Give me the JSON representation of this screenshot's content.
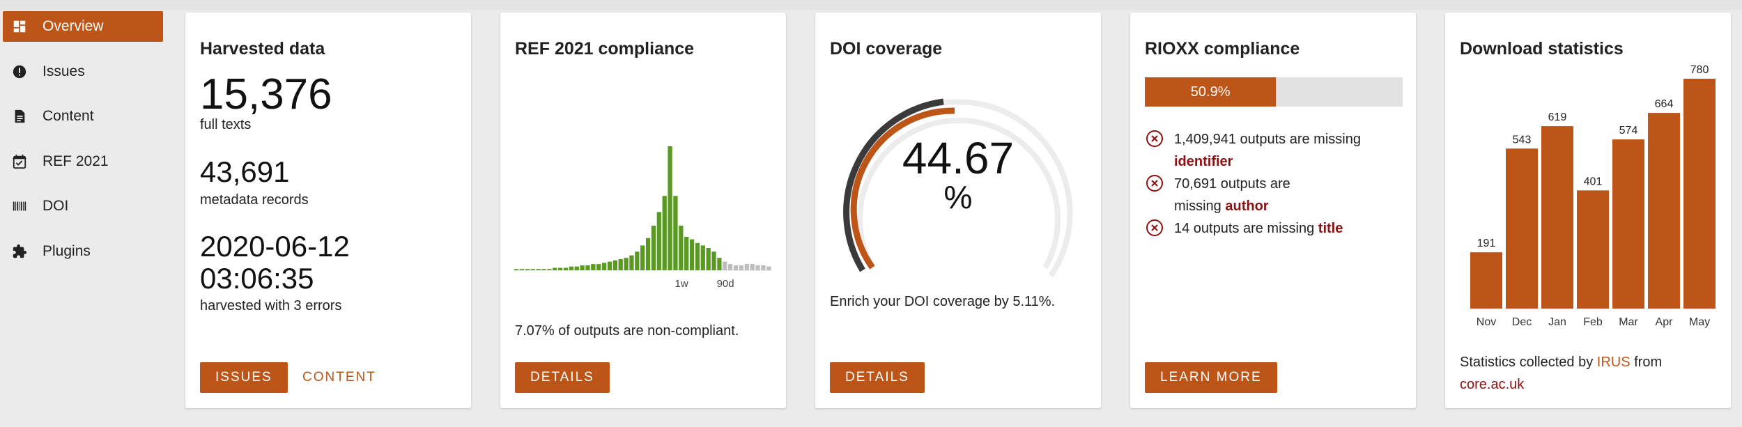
{
  "sidebar": {
    "items": [
      {
        "label": "Overview",
        "icon": "dashboard-icon",
        "active": true
      },
      {
        "label": "Issues",
        "icon": "alert-circle-icon"
      },
      {
        "label": "Content",
        "icon": "document-icon"
      },
      {
        "label": "REF 2021",
        "icon": "calendar-check-icon"
      },
      {
        "label": "DOI",
        "icon": "barcode-icon"
      },
      {
        "label": "Plugins",
        "icon": "puzzle-icon"
      }
    ]
  },
  "harvested": {
    "title": "Harvested data",
    "full_texts_value": "15,376",
    "full_texts_label": "full texts",
    "metadata_value": "43,691",
    "metadata_label": "metadata records",
    "date_line1": "2020-06-12",
    "date_line2": "03:06:35",
    "errors_label": "harvested with 3 errors",
    "issues_button": "ISSUES",
    "content_button": "CONTENT"
  },
  "ref": {
    "title": "REF 2021 compliance",
    "tick_1w": "1w",
    "tick_90d": "90d",
    "summary": "7.07% of outputs are non-compliant.",
    "details_button": "DETAILS"
  },
  "doi": {
    "title": "DOI coverage",
    "value_number": "44.67",
    "value_unit": "%",
    "coverage_percent": 44.67,
    "enrich_text": "Enrich your DOI coverage by 5.11%.",
    "details_button": "DETAILS"
  },
  "rioxx": {
    "title": "RIOXX compliance",
    "progress_label": "50.9%",
    "progress_value": 50.9,
    "issues": [
      {
        "prefix": "1,409,941 outputs are missing",
        "field": "identifier"
      },
      {
        "prefix": "70,691 outputs are missing",
        "field": "author"
      },
      {
        "prefix": "14 outputs are missing",
        "field": "title"
      }
    ],
    "learn_more_button": "LEARN MORE"
  },
  "downloads": {
    "title": "Download statistics",
    "stats_prefix": "Statistics collected by",
    "irus_link": "IRUS",
    "stats_suffix": "from",
    "core_link": "core.ac.uk"
  },
  "chart_data": [
    {
      "type": "bar",
      "title": "",
      "categories": [
        "Nov",
        "Dec",
        "Jan",
        "Feb",
        "Mar",
        "Apr",
        "May"
      ],
      "values": [
        191,
        543,
        619,
        401,
        574,
        664,
        780
      ],
      "xlabel": "",
      "ylabel": "",
      "ylim": [
        0,
        780
      ],
      "color": "#bd5519",
      "data_labels": true,
      "grid": false
    },
    {
      "type": "bar",
      "title": "",
      "values": [
        1,
        1,
        1,
        1,
        1,
        1,
        1,
        2,
        2,
        2,
        3,
        3,
        4,
        4,
        5,
        5,
        6,
        7,
        8,
        9,
        10,
        12,
        15,
        20,
        26,
        36,
        47,
        60,
        100,
        60,
        36,
        27,
        25,
        22,
        20,
        18,
        15,
        10,
        7,
        5,
        4,
        4,
        5,
        5,
        4,
        4,
        3
      ],
      "grey_from_index": 38,
      "tick_labels": [
        "1w",
        "90d"
      ],
      "colors": {
        "recent": "#5a9a22",
        "old": "#bdbdbd"
      },
      "grid": false
    }
  ]
}
